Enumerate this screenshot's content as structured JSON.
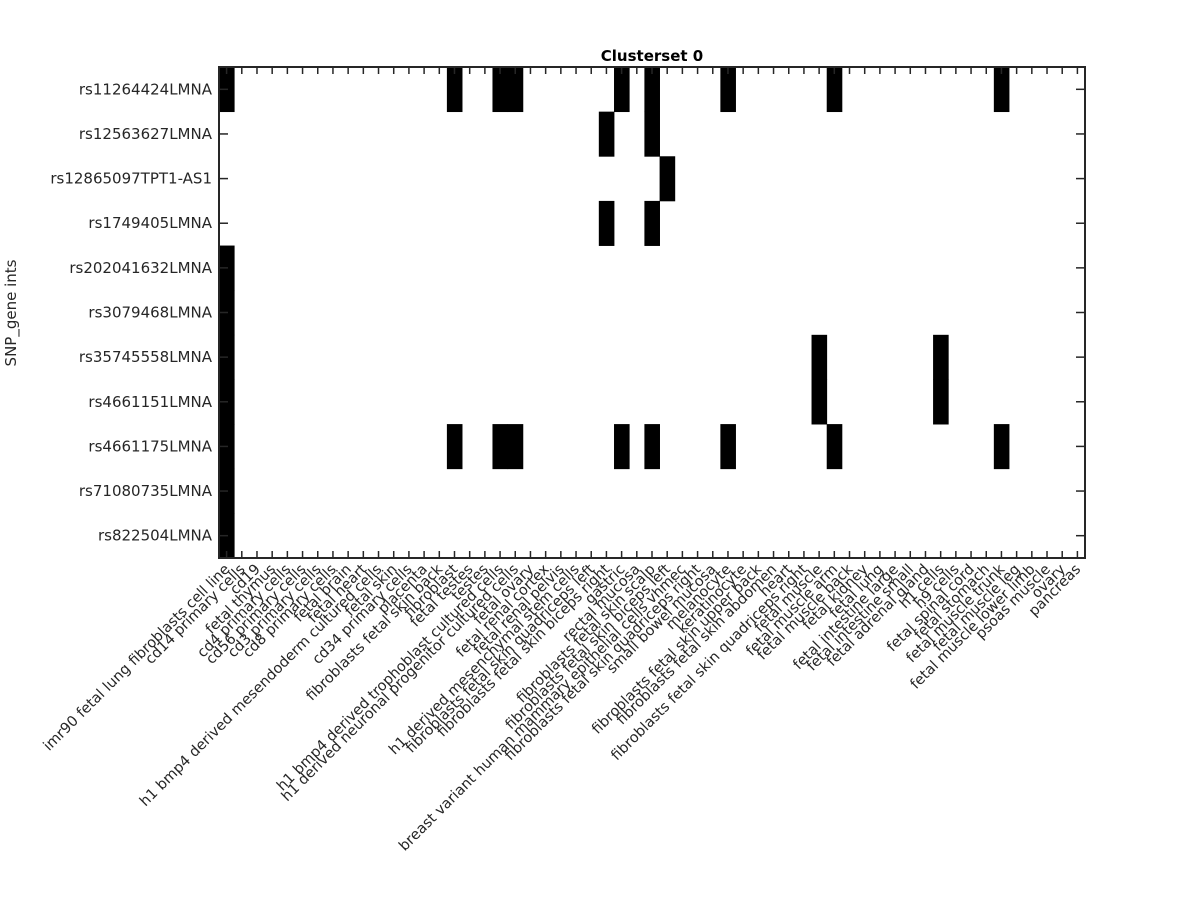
{
  "chart_data": {
    "type": "heatmap",
    "title": "Clusterset 0",
    "ylabel": "SNP_gene ints",
    "xlabel": "",
    "colormap": {
      "present": "#000000",
      "absent": "#ffffff"
    },
    "grid": false,
    "rows": [
      "rs11264424LMNA",
      "rs12563627LMNA",
      "rs12865097TPT1-AS1",
      "rs1749405LMNA",
      "rs202041632LMNA",
      "rs3079468LMNA",
      "rs35745558LMNA",
      "rs4661151LMNA",
      "rs4661175LMNA",
      "rs71080735LMNA",
      "rs822504LMNA"
    ],
    "columns": [
      "imr90 fetal lung fibroblasts cell line",
      "cd14 primary cells",
      "cd19",
      "fetal thymus",
      "cd4 primary cells",
      "cd56 primary cells",
      "cd3 primary cells",
      "cd8 primary cells",
      "fetal brain",
      "fetal heart",
      "h1 bmp4 derived mesendoderm cultured cells",
      "fetal skin",
      "cd34 primary cells",
      "placenta",
      "fibroblasts fetal skin back",
      "fibroblast",
      "fetal testes",
      "testes",
      "h1 bmp4 derived trophoblast cultured cells",
      "h1 derived neuronal progenitor cultured cells",
      "fetal ovary",
      "fetal renal cortex",
      "fetal renal pelvis",
      "h1 derived mesenchymal stem cells",
      "fibroblasts fetal skin quadriceps left",
      "fibroblasts fetal skin biceps right",
      "gastric",
      "rectal mucosa",
      "fibroblasts fetal skin scalp",
      "fibroblasts fetal skin biceps left",
      "breast variant human mammary epithelial cells vhmec",
      "fibroblasts fetal skin quadriceps right",
      "small bowel mucosa",
      "melanocyte",
      "keratinocyte",
      "fibroblasts fetal skin upper back",
      "fibroblasts fetal skin abdomen",
      "heart",
      "fibroblasts fetal skin quadriceps right",
      "fetal muscle",
      "fetal muscle arm",
      "fetal muscle back",
      "fetal kidney",
      "fetal lung",
      "fetal intestine large",
      "fetal intestine small",
      "fetal adrenal gland",
      "h1 cells",
      "h9 cells",
      "fetal spinal cord",
      "fetal stomach",
      "fetal muscle trunk",
      "fetal muscle leg",
      "fetal muscle lower limb",
      "psoas muscle",
      "ovary",
      "pancreas"
    ],
    "active_cells": [
      {
        "row": "rs11264424LMNA",
        "cols": [
          0,
          15,
          18,
          19,
          26,
          28,
          33,
          40,
          51
        ]
      },
      {
        "row": "rs12563627LMNA",
        "cols": [
          25,
          28
        ]
      },
      {
        "row": "rs12865097TPT1-AS1",
        "cols": [
          29
        ]
      },
      {
        "row": "rs1749405LMNA",
        "cols": [
          25,
          28
        ]
      },
      {
        "row": "rs202041632LMNA",
        "cols": [
          0
        ]
      },
      {
        "row": "rs3079468LMNA",
        "cols": [
          0
        ]
      },
      {
        "row": "rs35745558LMNA",
        "cols": [
          0,
          39,
          47
        ]
      },
      {
        "row": "rs4661151LMNA",
        "cols": [
          0,
          39,
          47
        ]
      },
      {
        "row": "rs4661175LMNA",
        "cols": [
          0,
          15,
          18,
          19,
          26,
          28,
          33,
          40,
          51
        ]
      },
      {
        "row": "rs71080735LMNA",
        "cols": [
          0
        ]
      },
      {
        "row": "rs822504LMNA",
        "cols": [
          0
        ]
      }
    ]
  }
}
